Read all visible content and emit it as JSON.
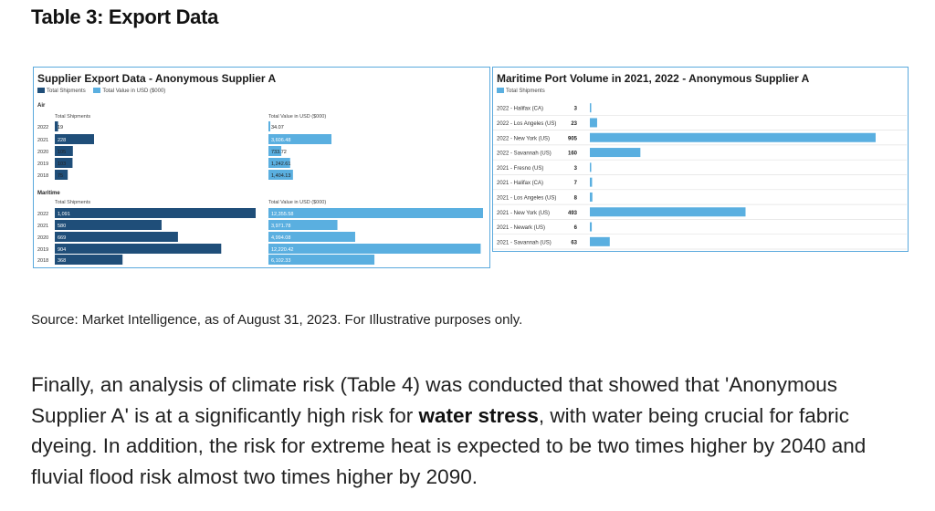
{
  "page": {
    "title": "Table 3: Export Data",
    "source": "Source: Market Intelligence, as of August 31, 2023. For Illustrative purposes only.",
    "paragraph": {
      "before": "Finally, an analysis of climate risk (Table 4) was conducted that showed that 'Anonymous Supplier A' is at a significantly high risk for ",
      "bold": "water stress",
      "after": ", with water being crucial for fabric dyeing. In addition, the risk for extreme heat is expected to be two times higher by 2040 and fluvial flood risk almost two times higher by 2090."
    }
  },
  "colors": {
    "dark": "#1f4e79",
    "light": "#5aafe0",
    "border": "#5aa9dd"
  },
  "chart_data": [
    {
      "type": "bar",
      "orientation": "horizontal",
      "title": "Supplier Export Data - Anonymous Supplier A",
      "legend": [
        "Total Shipments",
        "Total Value in USD ($000)"
      ],
      "groups": [
        {
          "label": "Air",
          "categories": [
            "2022",
            "2021",
            "2020",
            "2019",
            "2018"
          ],
          "series": [
            {
              "name": "Total Shipments",
              "header": "Total Shipments",
              "values": [
                19,
                228,
                105,
                103,
                75
              ],
              "labels": [
                "19",
                "228",
                "105",
                "103",
                "75"
              ]
            },
            {
              "name": "Total Value in USD ($000)",
              "header": "Total Value in USD ($000)",
              "values": [
                34.07,
                3606.48,
                733.72,
                1242.61,
                1404.13
              ],
              "labels": [
                "34.07",
                "3,606.48",
                "733.72",
                "1,242.61",
                "1,404.13"
              ]
            }
          ]
        },
        {
          "label": "Maritime",
          "categories": [
            "2022",
            "2021",
            "2020",
            "2019",
            "2018"
          ],
          "series": [
            {
              "name": "Total Shipments",
              "header": "Total Shipments",
              "values": [
                1091,
                580,
                669,
                904,
                368
              ],
              "labels": [
                "1,091",
                "580",
                "669",
                "904",
                "368"
              ]
            },
            {
              "name": "Total Value in USD ($000)",
              "header": "Total Value in USD ($000)",
              "values": [
                12355.58,
                3971.78,
                4994.08,
                12220.42,
                6102.33
              ],
              "labels": [
                "12,355.58",
                "3,971.78",
                "4,994.08",
                "12,220.42",
                "6,102.33"
              ]
            }
          ]
        }
      ]
    },
    {
      "type": "bar",
      "orientation": "horizontal",
      "title": "Maritime Port Volume in 2021, 2022 - Anonymous Supplier A",
      "legend": [
        "Total Shipments"
      ],
      "categories": [
        "2022 - Halifax (CA)",
        "2022 - Los Angeles (US)",
        "2022 - New York (US)",
        "2022 - Savannah (US)",
        "2021 - Fresno (US)",
        "2021 - Halifax (CA)",
        "2021 - Los Angeles (US)",
        "2021 - New York (US)",
        "2021 - Newark (US)",
        "2021 - Savannah (US)"
      ],
      "series": [
        {
          "name": "Total Shipments",
          "values": [
            3,
            23,
            905,
            160,
            3,
            7,
            8,
            493,
            6,
            63
          ]
        }
      ]
    }
  ]
}
